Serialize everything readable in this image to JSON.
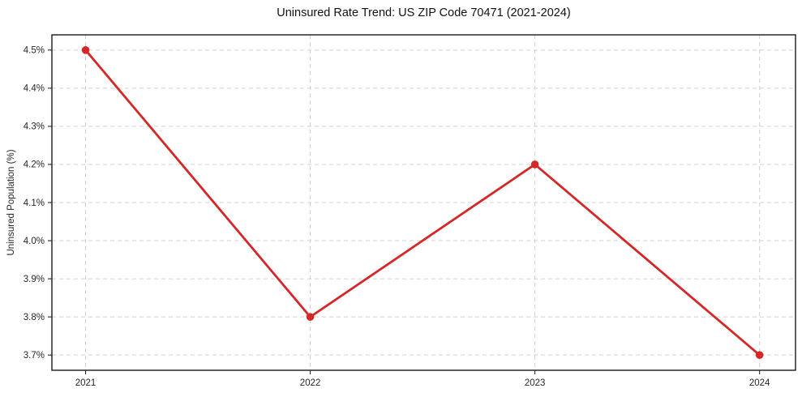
{
  "chart_data": {
    "type": "line",
    "title": "Uninsured Rate Trend: US ZIP Code 70471 (2021-2024)",
    "xlabel": "",
    "ylabel": "Uninsured Population (%)",
    "x": [
      2021,
      2022,
      2023,
      2024
    ],
    "x_tick_labels": [
      "2021",
      "2022",
      "2023",
      "2024"
    ],
    "series": [
      {
        "name": "Uninsured Rate",
        "values": [
          4.5,
          3.8,
          4.2,
          3.7
        ]
      }
    ],
    "y_ticks": [
      3.7,
      3.8,
      3.9,
      4.0,
      4.1,
      4.2,
      4.3,
      4.4,
      4.5
    ],
    "y_tick_labels": [
      "3.7%",
      "3.8%",
      "3.9%",
      "4.0%",
      "4.1%",
      "4.2%",
      "4.3%",
      "4.4%",
      "4.5%"
    ],
    "ylim": [
      3.66,
      4.54
    ],
    "xlim": [
      2020.85,
      2024.16
    ],
    "grid": true,
    "grid_style": "dashed",
    "legend": "none",
    "line_color": "#d62728",
    "marker": "circle",
    "marker_color": "#d62728",
    "grid_color": "#d0d0d0",
    "axis_color": "#1a1a1a",
    "tick_color": "#262626"
  }
}
